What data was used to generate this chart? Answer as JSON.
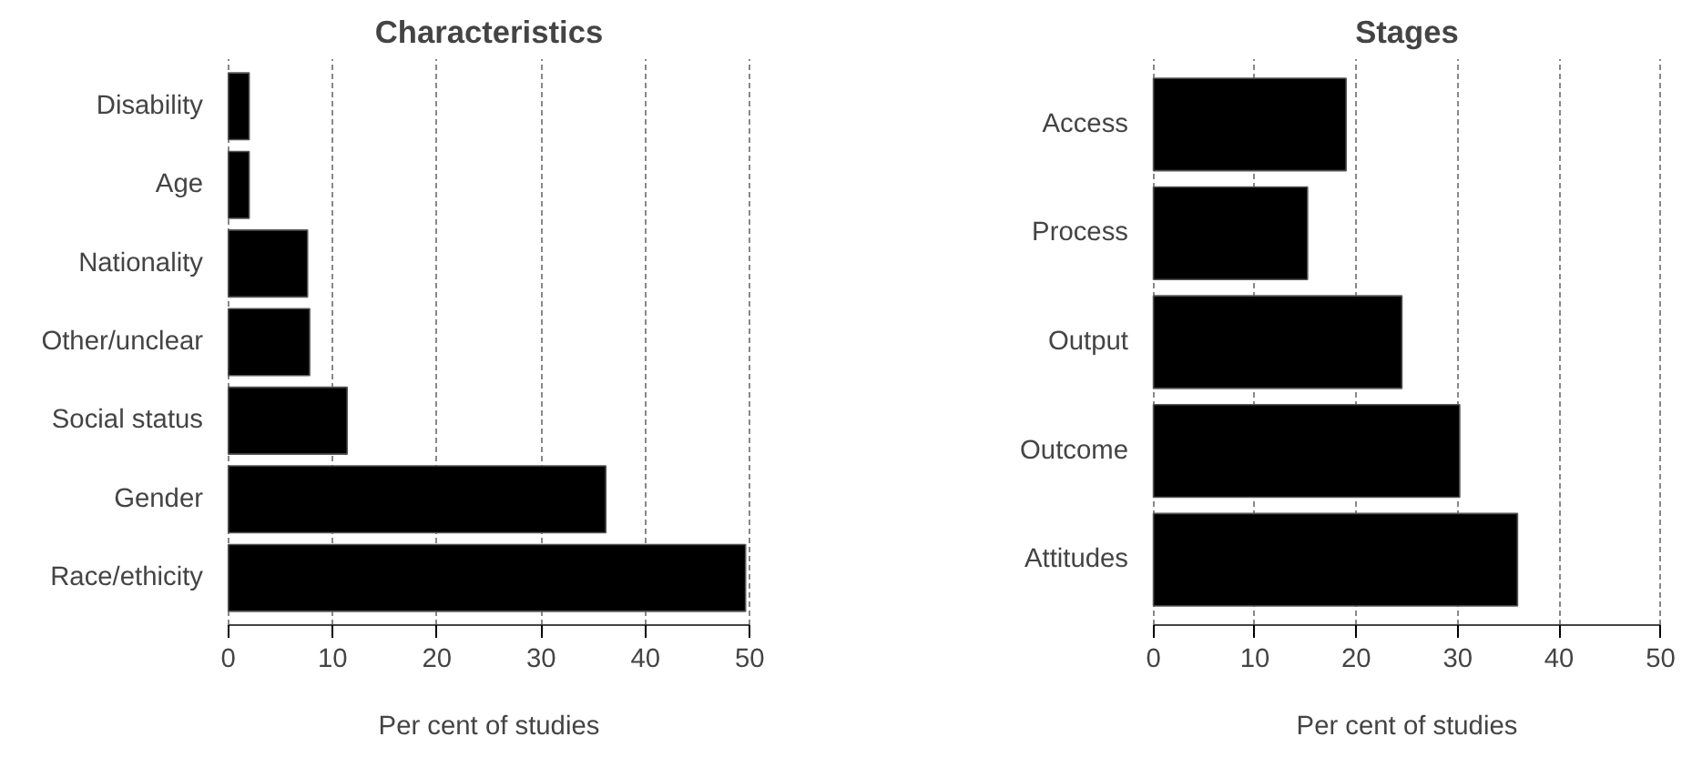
{
  "chart_data": [
    {
      "type": "bar",
      "orientation": "horizontal",
      "title": "Characteristics",
      "xlabel": "Per cent of studies",
      "categories": [
        "Disability",
        "Age",
        "Nationality",
        "Other/unclear",
        "Social status",
        "Gender",
        "Race/ethicity"
      ],
      "values": [
        2.0,
        2.0,
        7.6,
        7.8,
        11.4,
        36.2,
        49.6
      ],
      "color": "#000000",
      "xlim": [
        0,
        50
      ],
      "xticks": [
        0,
        10,
        20,
        30,
        40,
        50
      ],
      "grid": "x"
    },
    {
      "type": "bar",
      "orientation": "horizontal",
      "title": "Stages",
      "xlabel": "Per cent of studies",
      "categories": [
        "Access",
        "Process",
        "Output",
        "Outcome",
        "Attitudes"
      ],
      "values": [
        19.0,
        15.2,
        24.5,
        30.2,
        35.9
      ],
      "color": "#000000",
      "xlim": [
        0,
        50
      ],
      "xticks": [
        0,
        10,
        20,
        30,
        40,
        50
      ],
      "grid": "x"
    }
  ]
}
